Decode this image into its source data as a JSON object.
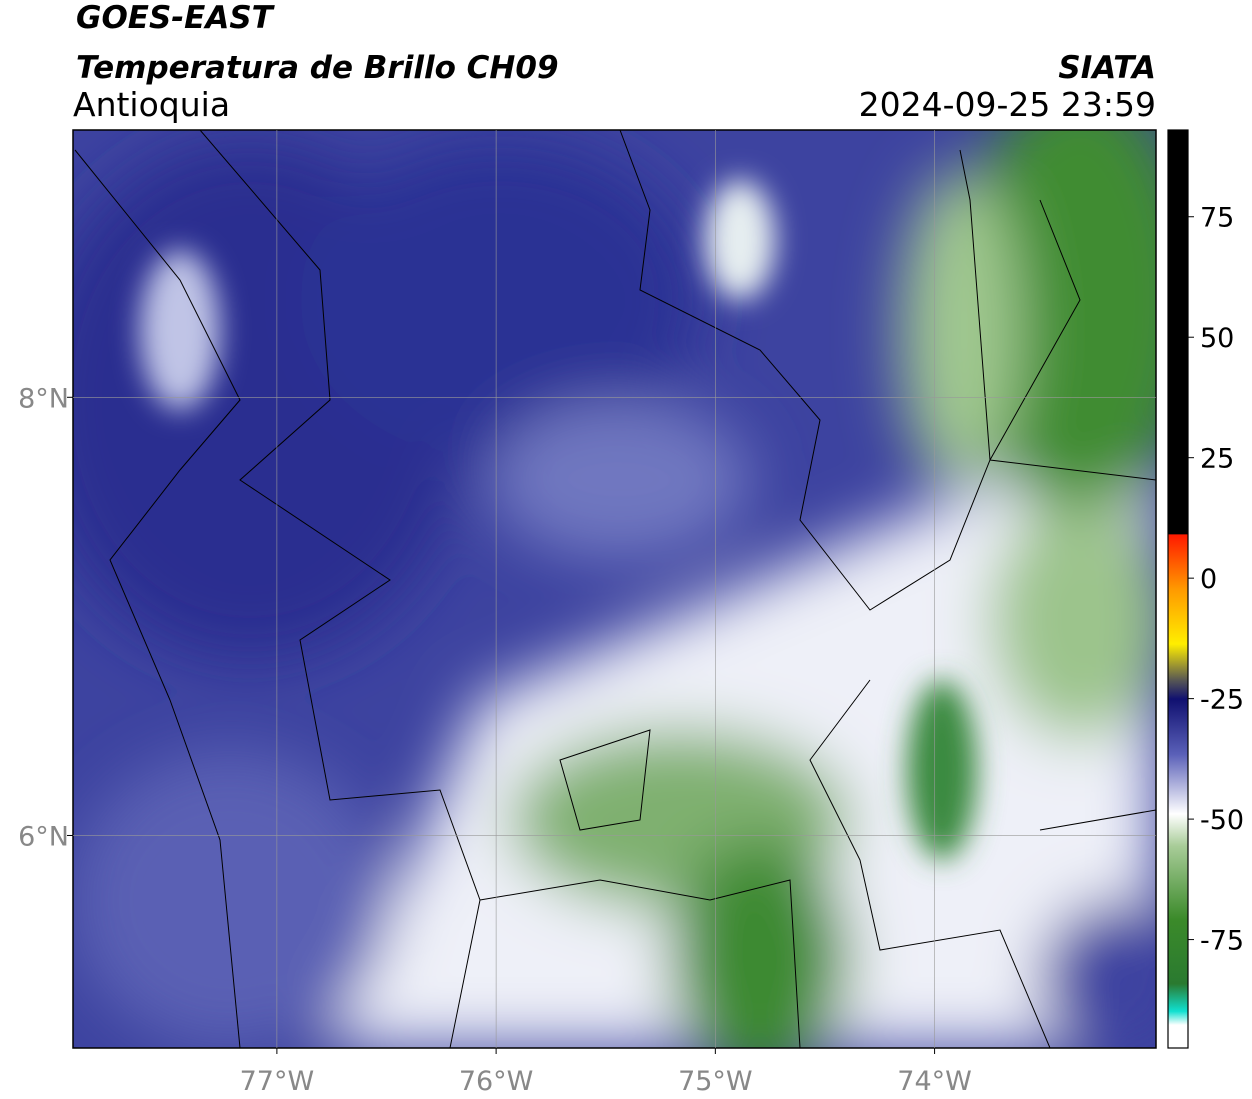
{
  "header": {
    "title": "GOES-EAST",
    "subtitle": "Temperatura de Brillo CH09",
    "region": "Antioquia",
    "source": "SIATA",
    "timestamp": "2024-09-25 23:59"
  },
  "map": {
    "lonlim": [
      -77.93,
      -72.99
    ],
    "latlim": [
      5.03,
      9.22
    ],
    "lon_ticks": [
      {
        "value": -77,
        "label": "77°W"
      },
      {
        "value": -76,
        "label": "76°W"
      },
      {
        "value": -75,
        "label": "75°W"
      },
      {
        "value": -74,
        "label": "74°W"
      }
    ],
    "lat_ticks": [
      {
        "value": 8,
        "label": "8°N"
      },
      {
        "value": 6,
        "label": "6°N"
      }
    ]
  },
  "colorbar": {
    "lim": [
      -97.5,
      93
    ],
    "ticks": [
      75,
      50,
      25,
      0,
      -25,
      -50,
      -75
    ]
  }
}
